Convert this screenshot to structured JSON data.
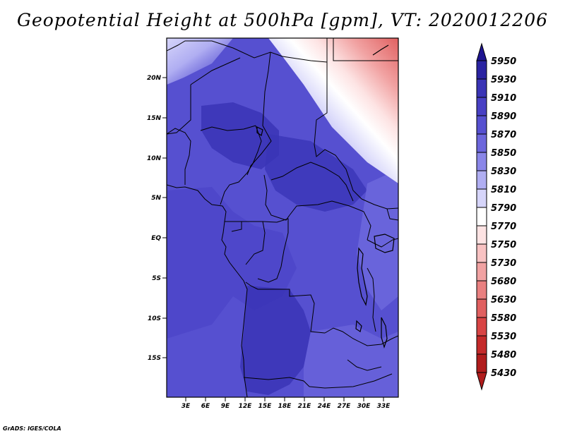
{
  "title": "Geopotential Height at 500hPa [gpm], VT: 2020012206",
  "credit": "GrADS: IGES/COLA",
  "map": {
    "lat_labels": [
      "20N",
      "15N",
      "10N",
      "5N",
      "EQ",
      "5S",
      "10S",
      "15S"
    ],
    "lon_labels": [
      "3E",
      "6E",
      "9E",
      "12E",
      "15E",
      "18E",
      "21E",
      "24E",
      "27E",
      "30E",
      "33E"
    ]
  },
  "colorbar": {
    "levels": [
      "5950",
      "5930",
      "5910",
      "5890",
      "5870",
      "5850",
      "5830",
      "5810",
      "5790",
      "5770",
      "5750",
      "5730",
      "5680",
      "5630",
      "5580",
      "5530",
      "5480",
      "5430"
    ],
    "colors": [
      "#1e1490",
      "#2a23a2",
      "#3a34b6",
      "#4840c4",
      "#5650d0",
      "#6c66dc",
      "#8a86e8",
      "#b0aef2",
      "#d6d5fa",
      "#ffffff",
      "#fde3e3",
      "#f8c2c2",
      "#f1a2a2",
      "#e98080",
      "#e06060",
      "#d84444",
      "#c42a2a",
      "#b01c1c"
    ]
  }
}
